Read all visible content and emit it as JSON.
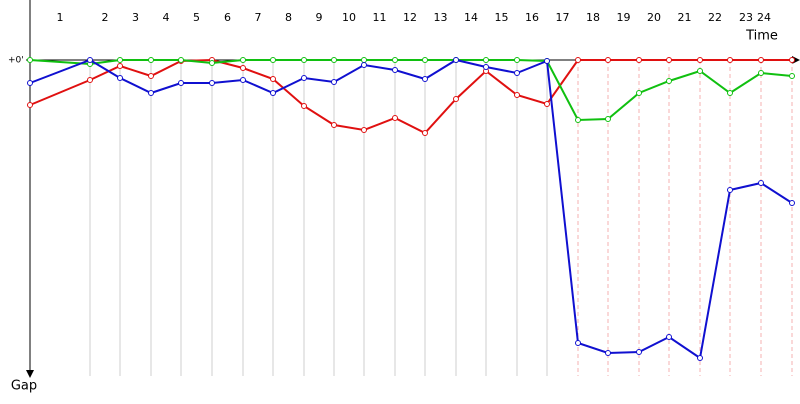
{
  "chart_data": {
    "type": "line",
    "x_label": "Time",
    "y_label": "Gap",
    "categories": [
      null,
      "1",
      "2",
      "3",
      "4",
      "5",
      "6",
      "7",
      "8",
      "9",
      "10",
      "11",
      "12",
      "13",
      "14",
      "15",
      "16",
      "17",
      "18",
      "19",
      "20",
      "21",
      "22",
      "23",
      "24"
    ],
    "ylim": [
      0,
      320
    ],
    "yticks": [
      {
        "value": 0,
        "label": "+0'"
      }
    ],
    "y_inverted": true,
    "series": [
      {
        "name": "Red",
        "color": "#e01010",
        "values": [
          45,
          20,
          6,
          16,
          1,
          0,
          8,
          19,
          46,
          65,
          70,
          58,
          73,
          39,
          11,
          35,
          44,
          0,
          0,
          0,
          0,
          0,
          0,
          0,
          0
        ]
      },
      {
        "name": "Green",
        "color": "#10c010",
        "values": [
          0,
          4,
          0,
          0,
          0,
          3,
          0,
          0,
          0,
          0,
          0,
          0,
          0,
          0,
          0,
          0,
          1,
          60,
          59,
          33,
          21,
          11,
          33,
          13,
          16
        ]
      },
      {
        "name": "Blue",
        "color": "#1010d0",
        "values": [
          23,
          0,
          18,
          33,
          23,
          23,
          20,
          33,
          18,
          22,
          5,
          10,
          19,
          0,
          7,
          13,
          1,
          283,
          293,
          292,
          277,
          298,
          130,
          123,
          143
        ]
      }
    ]
  }
}
